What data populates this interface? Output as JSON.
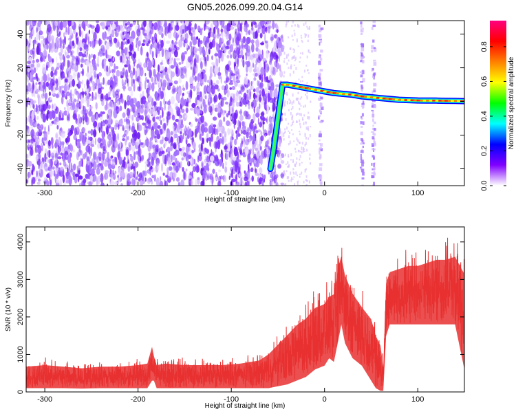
{
  "title": "GN05.2026.099.20.04.G14",
  "chart_data": [
    {
      "type": "heatmap",
      "xlabel": "Height of straight line (km)",
      "ylabel": "Frequency (Hz)",
      "xlim": [
        -320,
        150
      ],
      "ylim": [
        -50,
        48
      ],
      "xticks": [
        "-300",
        "-200",
        "-100",
        "0",
        "100"
      ],
      "xtick_values": [
        -300,
        -200,
        -100,
        0,
        100
      ],
      "yticks": [
        "-40",
        "-20",
        "0",
        "20",
        "40"
      ],
      "ytick_values": [
        -40,
        -20,
        0,
        20,
        40
      ],
      "grid": false,
      "colorbar": {
        "label": "Normalized spectral amplitude",
        "range": [
          0,
          0.95
        ],
        "ticks": [
          "0.0",
          "0.2",
          "0.4",
          "0.6",
          "0.8"
        ],
        "tick_values": [
          0.0,
          0.2,
          0.4,
          0.6,
          0.8
        ],
        "colormap": [
          "#ffffff",
          "#8000ff",
          "#0000ff",
          "#00ffff",
          "#00ff00",
          "#ffff00",
          "#ff8000",
          "#ff0000",
          "#ff0080"
        ]
      },
      "regions": [
        {
          "name": "noise",
          "x_range": [
            -320,
            -45
          ],
          "y_range": [
            -50,
            48
          ]
        },
        {
          "name": "signal",
          "x_range": [
            -45,
            150
          ],
          "y_range": [
            0,
            10
          ]
        },
        {
          "name": "stripes",
          "x_values": [
            -5,
            40,
            52
          ]
        }
      ],
      "ridge": {
        "x": [
          -58,
          -55,
          -50,
          -45,
          -40,
          -30,
          -20,
          -10,
          0,
          10,
          20,
          30,
          40,
          50,
          60,
          70,
          80,
          90,
          100,
          110,
          120,
          130,
          140,
          150
        ],
        "y": [
          -40,
          -30,
          -10,
          10,
          10,
          9,
          8,
          7,
          6,
          5,
          4.5,
          4,
          3,
          2.5,
          2,
          1.5,
          1,
          0.8,
          0.6,
          0.5,
          0.5,
          0.4,
          0.3,
          0.2
        ]
      }
    },
    {
      "type": "line",
      "xlabel": "Height of straight line (km)",
      "ylabel": "SNR (10 * v/v)",
      "xlim": [
        -320,
        150
      ],
      "ylim": [
        0,
        4400
      ],
      "xticks": [
        "-300",
        "-200",
        "-100",
        "0",
        "100"
      ],
      "xtick_values": [
        -300,
        -200,
        -100,
        0,
        100
      ],
      "yticks": [
        "0",
        "1000",
        "2000",
        "3000",
        "4000"
      ],
      "ytick_values": [
        0,
        1000,
        2000,
        3000,
        4000
      ],
      "grid": false,
      "series": [
        {
          "color": "#e83030",
          "x": [
            -320,
            -300,
            -280,
            -260,
            -240,
            -220,
            -200,
            -190,
            -185,
            -183,
            -180,
            -170,
            -150,
            -130,
            -110,
            -90,
            -70,
            -60,
            -50,
            -40,
            -30,
            -20,
            -10,
            0,
            5,
            10,
            15,
            18,
            22,
            30,
            40,
            50,
            55,
            60,
            63,
            66,
            70,
            80,
            90,
            100,
            110,
            120,
            130,
            140,
            150
          ],
          "lower": [
            100,
            100,
            100,
            90,
            100,
            100,
            100,
            100,
            300,
            300,
            100,
            100,
            100,
            100,
            100,
            100,
            100,
            100,
            150,
            200,
            300,
            400,
            600,
            700,
            900,
            800,
            1400,
            1800,
            1300,
            900,
            700,
            300,
            100,
            30,
            30,
            1500,
            1800,
            1800,
            1800,
            1800,
            1800,
            1800,
            1800,
            1800,
            600
          ],
          "upper": [
            800,
            850,
            800,
            750,
            800,
            800,
            850,
            900,
            1400,
            1100,
            850,
            900,
            850,
            850,
            850,
            900,
            1000,
            1200,
            1500,
            1800,
            2100,
            2300,
            2600,
            2700,
            2900,
            3000,
            3800,
            4000,
            3500,
            3000,
            2600,
            2300,
            1800,
            1500,
            800,
            3200,
            3500,
            3600,
            3700,
            3700,
            3800,
            3900,
            3900,
            4000,
            3700
          ]
        }
      ]
    }
  ]
}
